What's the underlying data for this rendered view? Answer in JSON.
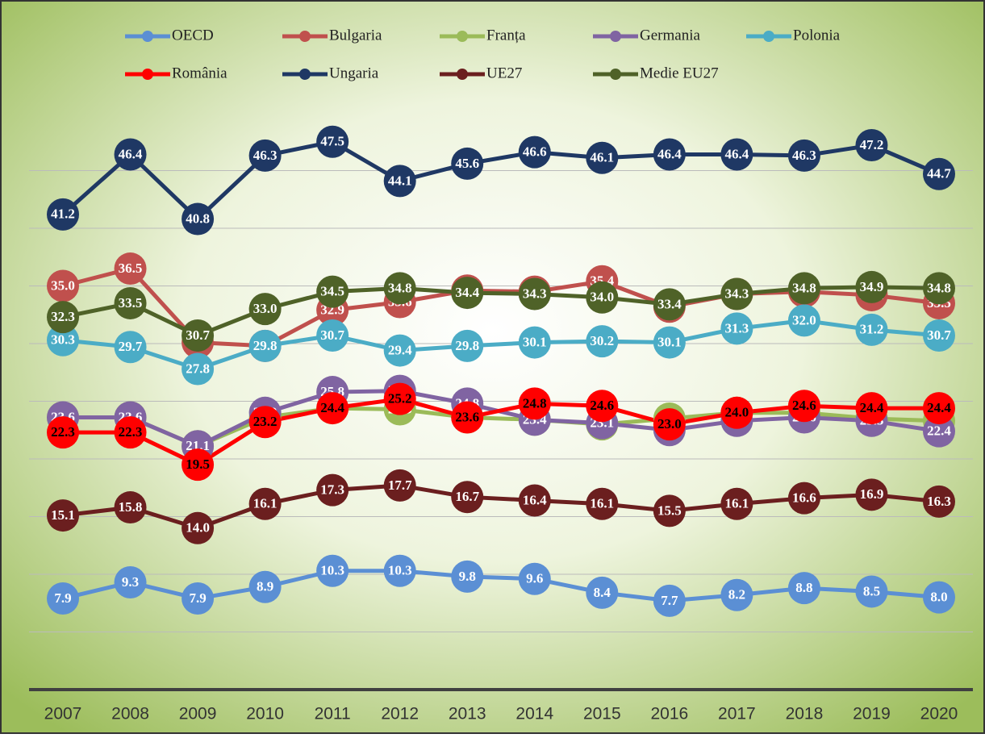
{
  "chart_data": {
    "type": "line",
    "x": [
      "2007",
      "2008",
      "2009",
      "2010",
      "2011",
      "2012",
      "2013",
      "2014",
      "2015",
      "2016",
      "2017",
      "2018",
      "2019",
      "2020"
    ],
    "ylim": [
      0,
      50
    ],
    "yticks": [
      5,
      10,
      15,
      20,
      25,
      30,
      35,
      40,
      45
    ],
    "grid": true,
    "legend": "top",
    "series": [
      {
        "name": "OECD",
        "color": "#5b8fd4",
        "values": [
          7.9,
          9.3,
          7.9,
          8.9,
          10.3,
          10.3,
          9.8,
          9.6,
          8.4,
          7.7,
          8.2,
          8.8,
          8.5,
          8.0
        ],
        "value_labels": [
          "7.9",
          "9.3",
          "7.9",
          "8.9",
          "10.3",
          "10.3",
          "9.8",
          "9.6",
          "8.4",
          "7.7",
          "8.2",
          "8.8",
          "8.5",
          "8.0"
        ]
      },
      {
        "name": "Bulgaria",
        "color": "#c0504d",
        "values": [
          35.0,
          36.5,
          30.1,
          29.8,
          32.9,
          33.6,
          34.6,
          34.5,
          35.4,
          33.2,
          34.3,
          34.5,
          34.2,
          33.5
        ],
        "value_labels": [
          "35.0",
          "36.5",
          "30.1",
          "29.8",
          "32.9",
          "33.6",
          "34.6",
          "34.5",
          "35.4",
          "33.2",
          "34.3",
          "34.5",
          "34.2",
          "33.5"
        ]
      },
      {
        "name": "Franța",
        "color": "#9bbb59",
        "values": [
          23.6,
          23.6,
          21.1,
          23.6,
          24.4,
          24.3,
          23.6,
          23.4,
          23.0,
          23.5,
          24.0,
          24.0,
          23.5,
          23.3
        ],
        "value_labels": [
          "23.6",
          "23.6",
          "21.1",
          "23.6",
          "24.4",
          "24.3",
          "23.6",
          "23.4",
          "23.0",
          "23.5",
          "24.0",
          "24.0",
          "23.5",
          "23.3"
        ]
      },
      {
        "name": "Germania",
        "color": "#8064a2",
        "values": [
          23.6,
          23.6,
          21.1,
          24.0,
          25.8,
          25.9,
          24.8,
          23.4,
          23.1,
          22.5,
          23.3,
          23.6,
          23.3,
          22.4
        ],
        "value_labels": [
          "23.6",
          "23.6",
          "21.1",
          "24.0",
          "25.8",
          "25.9",
          "24.8",
          "23.4",
          "23.1",
          "22.5",
          "23.3",
          "23.6",
          "23.3",
          "22.4"
        ]
      },
      {
        "name": "Polonia",
        "color": "#4bacc6",
        "values": [
          30.3,
          29.7,
          27.8,
          29.8,
          30.7,
          29.4,
          29.8,
          30.1,
          30.2,
          30.1,
          31.3,
          32.0,
          31.2,
          30.7
        ],
        "value_labels": [
          "30.3",
          "29.7",
          "27.8",
          "29.8",
          "30.7",
          "29.4",
          "29.8",
          "30.1",
          "30.2",
          "30.1",
          "31.3",
          "32.0",
          "31.2",
          "30.7"
        ]
      },
      {
        "name": "România",
        "color": "#ff0000",
        "values": [
          22.3,
          22.3,
          19.5,
          23.2,
          24.4,
          25.2,
          23.6,
          24.8,
          24.6,
          23.0,
          24.0,
          24.6,
          24.4,
          24.4
        ],
        "value_labels": [
          "22.3",
          "22.3",
          "19.5",
          "23.2",
          "24.4",
          "25.2",
          "23.6",
          "24.8",
          "24.6",
          "23.0",
          "24.0",
          "24.6",
          "24.4",
          "24.4"
        ]
      },
      {
        "name": "Ungaria",
        "color": "#1f3864",
        "values": [
          41.2,
          46.4,
          40.8,
          46.3,
          47.5,
          44.1,
          45.6,
          46.6,
          46.1,
          46.4,
          46.4,
          46.3,
          47.2,
          44.7
        ],
        "value_labels": [
          "41.2",
          "46.4",
          "40.8",
          "46.3",
          "47.5",
          "44.1",
          "45.6",
          "46.6",
          "46.1",
          "46.4",
          "46.4",
          "46.3",
          "47.2",
          "44.7"
        ]
      },
      {
        "name": "UE27",
        "color": "#6b1f1f",
        "values": [
          15.1,
          15.8,
          14.0,
          16.1,
          17.3,
          17.7,
          16.7,
          16.4,
          16.1,
          15.5,
          16.1,
          16.6,
          16.9,
          16.3
        ],
        "value_labels": [
          "15.1",
          "15.8",
          "14.0",
          "16.1",
          "17.3",
          "17.7",
          "16.7",
          "16.4",
          "16.1",
          "15.5",
          "16.1",
          "16.6",
          "16.9",
          "16.3"
        ]
      },
      {
        "name": "Medie EU27",
        "color": "#4f6228",
        "values": [
          32.3,
          33.5,
          30.7,
          33.0,
          34.5,
          34.8,
          34.4,
          34.3,
          34.0,
          33.4,
          34.3,
          34.8,
          34.9,
          34.8
        ],
        "value_labels": [
          "32.3",
          "33.5",
          "30.7",
          "33.0",
          "34.5",
          "34.8",
          "34.4",
          "34.3",
          "34.0",
          "33.4",
          "34.3",
          "34.8",
          "34.9",
          "34.8"
        ]
      }
    ]
  }
}
